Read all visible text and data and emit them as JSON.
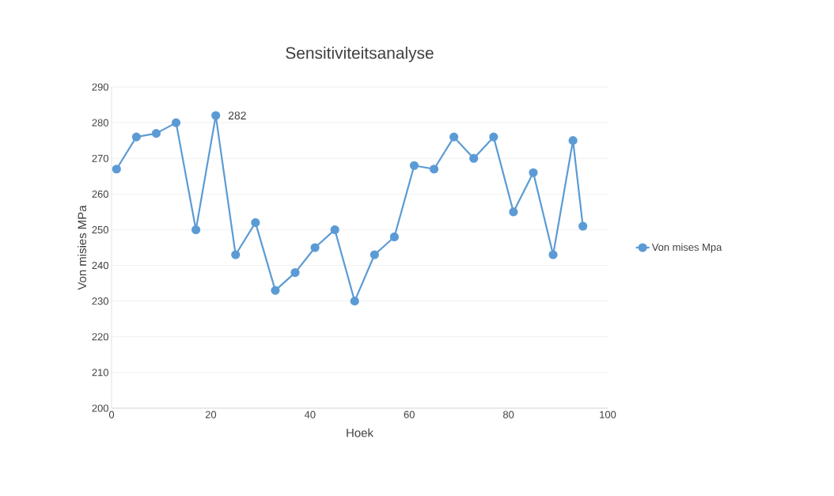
{
  "chart_data": {
    "type": "line",
    "title": "Sensitiviteitsanalyse",
    "xlabel": "Hoek",
    "ylabel": "Von misies MPa",
    "x": [
      1,
      5,
      9,
      13,
      17,
      21,
      25,
      29,
      33,
      37,
      41,
      45,
      49,
      53,
      57,
      61,
      65,
      69,
      73,
      77,
      81,
      85,
      89,
      93,
      95
    ],
    "series": [
      {
        "name": "Von mises Mpa",
        "color": "#5b9bd5",
        "values": [
          267,
          276,
          277,
          280,
          250,
          282,
          243,
          252,
          233,
          238,
          245,
          250,
          230,
          243,
          248,
          268,
          267,
          276,
          270,
          276,
          255,
          266,
          243,
          275,
          251
        ]
      }
    ],
    "xlim": [
      0,
      100
    ],
    "xticks": [
      0,
      20,
      40,
      60,
      80,
      100
    ],
    "ylim": [
      200,
      290
    ],
    "yticks": [
      200,
      210,
      220,
      230,
      240,
      250,
      260,
      270,
      280,
      290
    ],
    "grid": "y",
    "legend": "right",
    "marker": "circle",
    "line_style": "solid",
    "annotations": [
      {
        "text": "282",
        "x": 21,
        "y": 282
      }
    ]
  }
}
